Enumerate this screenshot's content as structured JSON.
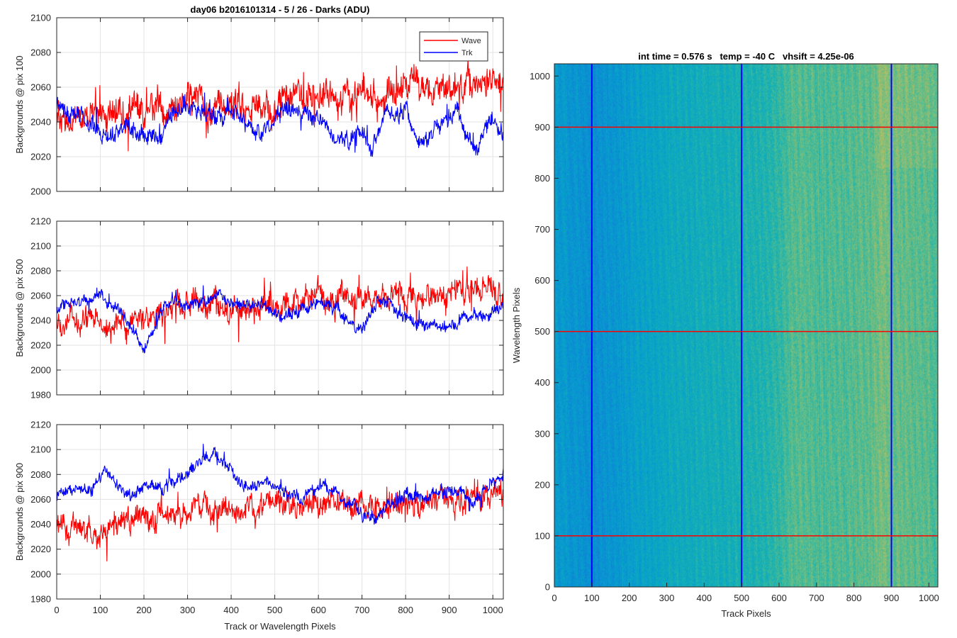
{
  "figure": {
    "title": "day06 b2016101314 - 5 / 26 - Darks (ADU)"
  },
  "chart_data": [
    {
      "type": "line",
      "id": "top",
      "title": "day06 b2016101314 - 5 / 26 - Darks (ADU)",
      "xlabel": "",
      "ylabel": "Backgrounds @ pix 100",
      "xlim": [
        0,
        1024
      ],
      "ylim": [
        2000,
        2100
      ],
      "xticks": [
        0,
        100,
        200,
        300,
        400,
        500,
        600,
        700,
        800,
        900,
        1000
      ],
      "yticks": [
        2000,
        2020,
        2040,
        2060,
        2080,
        2100
      ],
      "xtick_labels_visible": false,
      "grid": true,
      "legend": {
        "position": "top-right",
        "entries": [
          "Wave",
          "Trk"
        ]
      },
      "series": [
        {
          "name": "Wave",
          "color": "#ff0000",
          "anchors_x": [
            0,
            50,
            100,
            150,
            200,
            250,
            300,
            350,
            400,
            450,
            500,
            550,
            600,
            650,
            700,
            750,
            800,
            850,
            900,
            950,
            1024
          ],
          "anchors_y": [
            2040,
            2042,
            2045,
            2046,
            2046,
            2047,
            2052,
            2050,
            2050,
            2049,
            2050,
            2056,
            2058,
            2057,
            2056,
            2057,
            2058,
            2058,
            2058,
            2061,
            2060
          ],
          "noise": 9
        },
        {
          "name": "Trk",
          "color": "#0000ff",
          "anchors_x": [
            0,
            40,
            90,
            120,
            160,
            200,
            240,
            280,
            320,
            360,
            390,
            420,
            460,
            500,
            530,
            560,
            600,
            640,
            660,
            690,
            720,
            760,
            800,
            840,
            880,
            920,
            960,
            990,
            1024
          ],
          "anchors_y": [
            2048,
            2044,
            2036,
            2030,
            2040,
            2030,
            2034,
            2048,
            2048,
            2042,
            2046,
            2044,
            2036,
            2040,
            2048,
            2045,
            2044,
            2032,
            2028,
            2036,
            2024,
            2046,
            2044,
            2026,
            2040,
            2046,
            2022,
            2040,
            2032
          ],
          "noise": 5
        }
      ]
    },
    {
      "type": "line",
      "id": "middle",
      "title": "",
      "xlabel": "",
      "ylabel": "Backgrounds @ pix 500",
      "xlim": [
        0,
        1024
      ],
      "ylim": [
        1980,
        2120
      ],
      "xticks": [
        0,
        100,
        200,
        300,
        400,
        500,
        600,
        700,
        800,
        900,
        1000
      ],
      "yticks": [
        1980,
        2000,
        2020,
        2040,
        2060,
        2080,
        2100,
        2120
      ],
      "xtick_labels_visible": false,
      "grid": true,
      "series": [
        {
          "name": "Wave",
          "color": "#ff0000",
          "anchors_x": [
            0,
            50,
            100,
            150,
            200,
            250,
            300,
            350,
            400,
            450,
            500,
            550,
            600,
            650,
            700,
            750,
            800,
            850,
            900,
            950,
            1024
          ],
          "anchors_y": [
            2040,
            2040,
            2036,
            2036,
            2040,
            2046,
            2050,
            2050,
            2050,
            2052,
            2052,
            2054,
            2056,
            2058,
            2058,
            2058,
            2060,
            2062,
            2062,
            2064,
            2064
          ],
          "noise": 10
        },
        {
          "name": "Trk",
          "color": "#0000ff",
          "anchors_x": [
            0,
            40,
            100,
            150,
            180,
            200,
            230,
            270,
            300,
            340,
            380,
            420,
            460,
            500,
            540,
            580,
            620,
            660,
            700,
            740,
            780,
            820,
            860,
            900,
            940,
            980,
            1024
          ],
          "anchors_y": [
            2048,
            2054,
            2060,
            2046,
            2030,
            2018,
            2040,
            2056,
            2052,
            2054,
            2062,
            2050,
            2054,
            2046,
            2046,
            2054,
            2054,
            2040,
            2030,
            2058,
            2050,
            2036,
            2036,
            2032,
            2040,
            2042,
            2052
          ],
          "noise": 5
        }
      ]
    },
    {
      "type": "line",
      "id": "bottom",
      "title": "",
      "xlabel": "Track or Wavelength Pixels",
      "ylabel": "Backgrounds @ pix 900",
      "xlim": [
        0,
        1024
      ],
      "ylim": [
        1980,
        2120
      ],
      "xticks": [
        0,
        100,
        200,
        300,
        400,
        500,
        600,
        700,
        800,
        900,
        1000
      ],
      "yticks": [
        1980,
        2000,
        2020,
        2040,
        2060,
        2080,
        2100,
        2120
      ],
      "xtick_labels_visible": true,
      "grid": true,
      "series": [
        {
          "name": "Wave",
          "color": "#ff0000",
          "anchors_x": [
            0,
            50,
            100,
            150,
            200,
            250,
            300,
            350,
            400,
            450,
            500,
            550,
            600,
            650,
            700,
            750,
            800,
            850,
            900,
            950,
            1024
          ],
          "anchors_y": [
            2042,
            2038,
            2030,
            2042,
            2048,
            2050,
            2050,
            2052,
            2052,
            2052,
            2054,
            2054,
            2058,
            2058,
            2058,
            2056,
            2056,
            2058,
            2060,
            2060,
            2062
          ],
          "noise": 10
        },
        {
          "name": "Trk",
          "color": "#0000ff",
          "anchors_x": [
            0,
            40,
            80,
            110,
            140,
            170,
            200,
            240,
            280,
            320,
            360,
            380,
            410,
            440,
            480,
            520,
            560,
            600,
            640,
            680,
            700,
            720,
            760,
            800,
            840,
            880,
            920,
            960,
            1000,
            1024
          ],
          "anchors_y": [
            2064,
            2068,
            2066,
            2084,
            2072,
            2062,
            2070,
            2068,
            2076,
            2086,
            2100,
            2088,
            2074,
            2066,
            2076,
            2066,
            2060,
            2070,
            2066,
            2054,
            2046,
            2042,
            2054,
            2064,
            2060,
            2068,
            2070,
            2058,
            2074,
            2082
          ],
          "noise": 5
        }
      ]
    },
    {
      "type": "heatmap",
      "id": "image",
      "title": "int time = 0.576 s   temp = -40 C   vhsift = 4.25e-06",
      "xlabel": "Track Pixels",
      "ylabel": "Wavelength Pixels",
      "xlim": [
        0,
        1024
      ],
      "ylim": [
        0,
        1024
      ],
      "xticks": [
        0,
        100,
        200,
        300,
        400,
        500,
        600,
        700,
        800,
        900,
        1000
      ],
      "yticks": [
        0,
        100,
        200,
        300,
        400,
        500,
        600,
        700,
        800,
        900,
        1000
      ],
      "colormap": "parula",
      "column_profile": {
        "x": [
          0,
          60,
          100,
          160,
          240,
          300,
          400,
          500,
          560,
          600,
          640,
          700,
          760,
          840,
          880,
          900,
          960,
          1024
        ],
        "level": [
          0.42,
          0.4,
          0.36,
          0.4,
          0.46,
          0.5,
          0.52,
          0.54,
          0.56,
          0.6,
          0.66,
          0.64,
          0.64,
          0.66,
          0.7,
          0.68,
          0.66,
          0.64
        ]
      },
      "vertical_lines": {
        "x": [
          100,
          500,
          900
        ],
        "color": "#0000ff"
      },
      "horizontal_lines": {
        "y": [
          100,
          500,
          900
        ],
        "color": "#ff0000"
      }
    }
  ]
}
